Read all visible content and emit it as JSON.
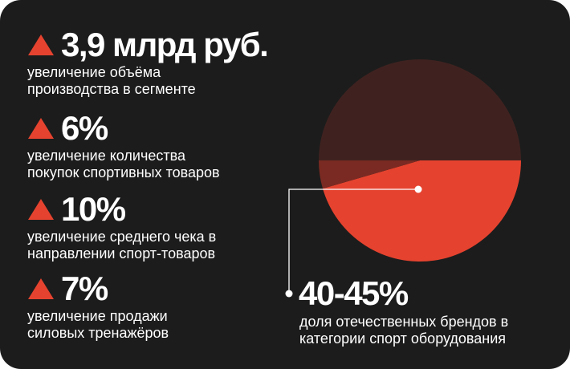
{
  "stats": [
    {
      "value": "3,9 млрд руб.",
      "line1": "увеличение объёма",
      "line2": "производства в сегменте"
    },
    {
      "value": "6%",
      "line1": "увеличение количества",
      "line2": "покупок спортивных товаров"
    },
    {
      "value": "10%",
      "line1": "увеличение среднего чека в",
      "line2": "направлении спорт-товаров"
    },
    {
      "value": "7%",
      "line1": "увеличение продажи",
      "line2": "силовых тренажёров"
    }
  ],
  "callout": {
    "value": "40-45%",
    "line1": "доля отечественных брендов в",
    "line2": "категории спорт оборудования"
  },
  "chart_data": {
    "type": "pie",
    "slices": [
      {
        "share": 0.455,
        "color": "#e5432f"
      },
      {
        "share": 0.045,
        "color": "#7a2a22"
      },
      {
        "share": 0.5,
        "color": "#3f2220"
      }
    ]
  },
  "colors": {
    "background": "#1c1c1c",
    "accent": "#e5432f",
    "text": "#ffffff",
    "up_triangle": "#e5432f"
  },
  "icons": [
    "triangle-up-icon"
  ]
}
